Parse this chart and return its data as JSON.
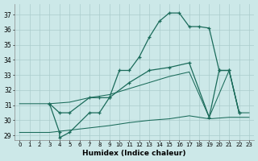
{
  "xlabel": "Humidex (Indice chaleur)",
  "bg_color": "#cce8e8",
  "grid_color": "#aacccc",
  "line_color": "#1a6b5a",
  "xlim": [
    -0.5,
    23.5
  ],
  "ylim": [
    28.7,
    37.7
  ],
  "xticks": [
    0,
    1,
    2,
    3,
    4,
    5,
    6,
    7,
    8,
    9,
    10,
    11,
    12,
    13,
    14,
    15,
    16,
    17,
    18,
    19,
    20,
    21,
    22,
    23
  ],
  "yticks": [
    29,
    30,
    31,
    32,
    33,
    34,
    35,
    36,
    37
  ],
  "line1_x": [
    3,
    4,
    4,
    5,
    7,
    8,
    9,
    10,
    11,
    12,
    13,
    14,
    15,
    16,
    17,
    18,
    19,
    20,
    21,
    22
  ],
  "line1_y": [
    31.1,
    29.2,
    28.85,
    29.2,
    30.5,
    30.5,
    31.5,
    33.3,
    33.3,
    34.2,
    35.5,
    36.55,
    37.1,
    37.1,
    36.2,
    36.2,
    36.1,
    33.3,
    33.3,
    30.5
  ],
  "line2_x": [
    3,
    4,
    5,
    7,
    8,
    9,
    11,
    13,
    15,
    17,
    19,
    20,
    21,
    22
  ],
  "line2_y": [
    31.1,
    30.5,
    30.5,
    31.5,
    31.5,
    31.5,
    32.5,
    33.3,
    33.5,
    33.8,
    30.2,
    33.3,
    33.3,
    30.5
  ],
  "line3_x": [
    0,
    3,
    5,
    7,
    9,
    11,
    13,
    15,
    17,
    19,
    21,
    22,
    23
  ],
  "line3_y": [
    29.2,
    29.2,
    29.35,
    29.5,
    29.65,
    29.85,
    30.0,
    30.1,
    30.3,
    30.1,
    30.2,
    30.2,
    30.2
  ],
  "line4_x": [
    0,
    3,
    5,
    7,
    9,
    11,
    13,
    15,
    17,
    19,
    21,
    22,
    23
  ],
  "line4_y": [
    31.1,
    31.1,
    31.2,
    31.5,
    31.7,
    32.1,
    32.5,
    32.9,
    33.2,
    30.2,
    33.3,
    30.5,
    30.5
  ]
}
